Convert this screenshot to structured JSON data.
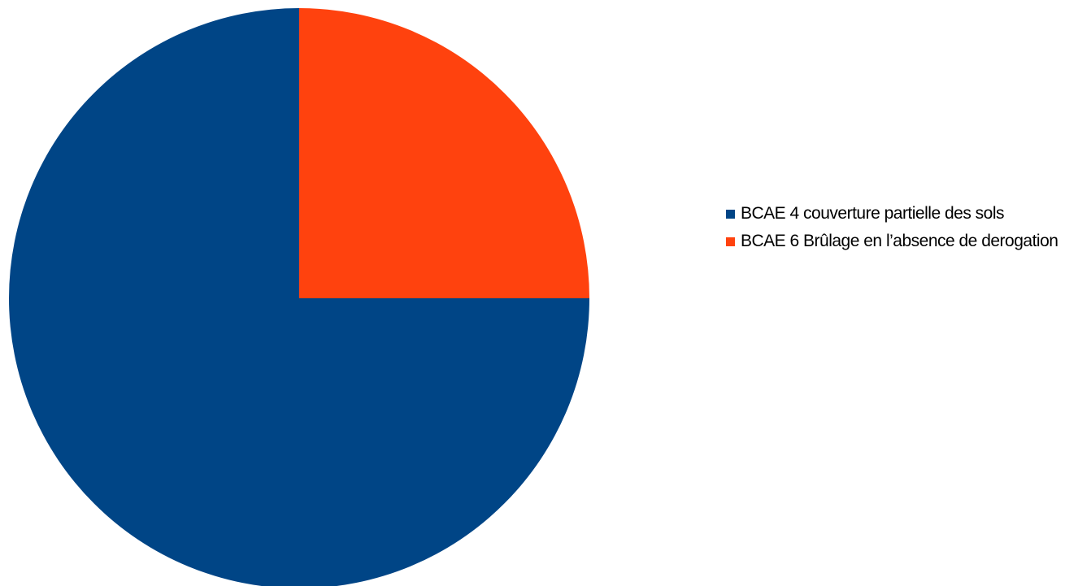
{
  "chart_data": {
    "type": "pie",
    "title": "",
    "slices": [
      {
        "label": "BCAE 4 couverture partielle des sols",
        "value": 75,
        "color": "#004586"
      },
      {
        "label": "BCAE 6 Brûlage en l’absence de derogation",
        "value": 25,
        "color": "#ff420e"
      }
    ],
    "legend_position": "right"
  }
}
